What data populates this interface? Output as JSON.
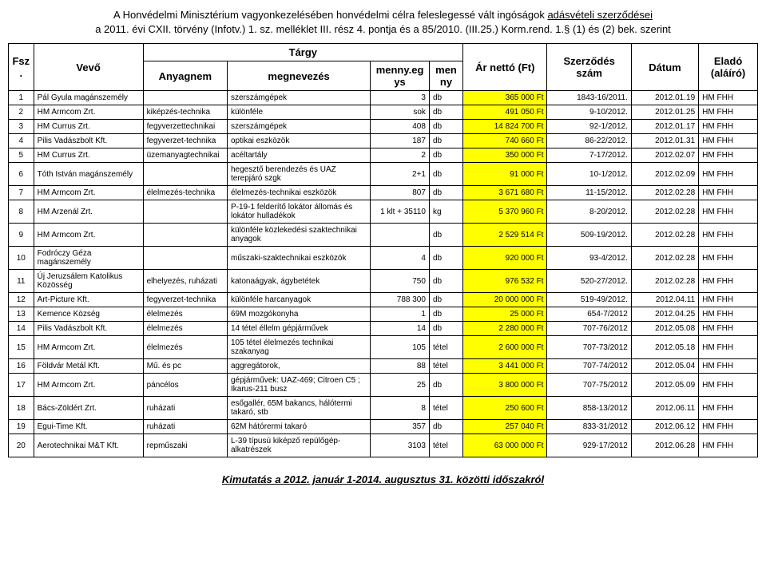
{
  "title_line1_a": "A Honvédelmi Minisztérium vagyonkezelésében honvédelmi célra feleslegessé vált ingóságok ",
  "title_line1_b": "adásvételi szerződései",
  "title_line2": "a 2011. évi CXII. törvény (Infotv.) 1. sz. melléklet III. rész 4. pontja és a 85/2010. (III.25.) Korm.rend. 1.§ (1) és (2) bek. szerint",
  "headers": {
    "fsz": "Fsz.",
    "vevo": "Vevő",
    "targy": "Tárgy",
    "anyagnem": "Anyagnem",
    "megnevezes": "megnevezés",
    "mennyegys": "menny.egys",
    "menny": "menny",
    "ar": "Ár nettó (Ft)",
    "szerzodes": "Szerződés szám",
    "datum": "Dátum",
    "elado": "Eladó (aláíró)"
  },
  "rows": [
    {
      "n": "1",
      "vevo": "Pál Gyula magánszemély",
      "anyag": "",
      "meg": "szerszámgépek",
      "me": "3",
      "menny": "db",
      "ar": "365 000 Ft",
      "szerz": "1843-16/2011.",
      "datum": "2012.01.19",
      "elado": "HM FHH"
    },
    {
      "n": "2",
      "vevo": "HM Armcom Zrt.",
      "anyag": "kiképzés-technika",
      "meg": "különféle",
      "me": "sok",
      "menny": "db",
      "ar": "491 050 Ft",
      "szerz": "9-10/2012.",
      "datum": "2012.01.25",
      "elado": "HM FHH"
    },
    {
      "n": "3",
      "vevo": "HM Currus Zrt.",
      "anyag": "fegyverzettechnikai",
      "meg": "szerszámgépek",
      "me": "408",
      "menny": "db",
      "ar": "14 824 700 Ft",
      "szerz": "92-1/2012.",
      "datum": "2012.01.17",
      "elado": "HM FHH"
    },
    {
      "n": "4",
      "vevo": "Pilis Vadászbolt Kft.",
      "anyag": "fegyverzet-technika",
      "meg": "optikai eszközök",
      "me": "187",
      "menny": "db",
      "ar": "740 660 Ft",
      "szerz": "86-22/2012.",
      "datum": "2012.01.31",
      "elado": "HM FHH"
    },
    {
      "n": "5",
      "vevo": "HM Currus Zrt.",
      "anyag": "üzemanyagtechnikai",
      "meg": "acéltartály",
      "me": "2",
      "menny": "db",
      "ar": "350 000 Ft",
      "szerz": "7-17/2012.",
      "datum": "2012.02.07",
      "elado": "HM FHH"
    },
    {
      "n": "6",
      "vevo": "Tóth István magánszemély",
      "anyag": "",
      "meg": "hegesztő berendezés és UAZ terepjáró szgk",
      "me": "2+1",
      "menny": "db",
      "ar": "91 000 Ft",
      "szerz": "10-1/2012.",
      "datum": "2012.02.09",
      "elado": "HM FHH"
    },
    {
      "n": "7",
      "vevo": "HM Armcom Zrt.",
      "anyag": "élelmezés-technika",
      "meg": "élelmezés-technikai eszközök",
      "me": "807",
      "menny": "db",
      "ar": "3 671 680 Ft",
      "szerz": "11-15/2012.",
      "datum": "2012.02.28",
      "elado": "HM FHH"
    },
    {
      "n": "8",
      "vevo": "HM Arzenál Zrt.",
      "anyag": "",
      "meg": "P-19-1 felderítő lokátor állomás és lokátor hulladékok",
      "me": "1 klt + 35110",
      "menny": "kg",
      "ar": "5 370 960 Ft",
      "szerz": "8-20/2012.",
      "datum": "2012.02.28",
      "elado": "HM FHH"
    },
    {
      "n": "9",
      "vevo": "HM Armcom Zrt.",
      "anyag": "",
      "meg": "különféle közlekedési szaktechnikai anyagok",
      "me": "",
      "menny": "db",
      "ar": "2 529 514 Ft",
      "szerz": "509-19/2012.",
      "datum": "2012.02.28",
      "elado": "HM FHH"
    },
    {
      "n": "10",
      "vevo": "Fodróczy Géza magánszemély",
      "anyag": "",
      "meg": "műszaki-szaktechnikai eszközök",
      "me": "4",
      "menny": "db",
      "ar": "920 000 Ft",
      "szerz": "93-4/2012.",
      "datum": "2012.02.28",
      "elado": "HM FHH"
    },
    {
      "n": "11",
      "vevo": "Új Jeruzsálem Katolikus Közösség",
      "anyag": "elhelyezés, ruházati",
      "meg": "katonaágyak, ágybetétek",
      "me": "750",
      "menny": "db",
      "ar": "976 532 Ft",
      "szerz": "520-27/2012.",
      "datum": "2012.02.28",
      "elado": "HM FHH"
    },
    {
      "n": "12",
      "vevo": "Art-Picture Kft.",
      "anyag": "fegyverzet-technika",
      "meg": "különféle harcanyagok",
      "me": "788 300",
      "menny": "db",
      "ar": "20 000 000 Ft",
      "szerz": "519-49/2012.",
      "datum": "2012.04.11",
      "elado": "HM FHH"
    },
    {
      "n": "13",
      "vevo": "Kemence Község",
      "anyag": "élelmezés",
      "meg": "69M mozgókonyha",
      "me": "1",
      "menny": "db",
      "ar": "25 000 Ft",
      "szerz": "654-7/2012",
      "datum": "2012.04.25",
      "elado": "HM FHH"
    },
    {
      "n": "14",
      "vevo": "Pilis Vadászbolt Kft.",
      "anyag": "élelmezés",
      "meg": "14 tétel éllelm gépjárművek",
      "me": "14",
      "menny": "db",
      "ar": "2 280 000 Ft",
      "szerz": "707-76/2012",
      "datum": "2012.05.08",
      "elado": "HM FHH"
    },
    {
      "n": "15",
      "vevo": "HM Armcom Zrt.",
      "anyag": "élelmezés",
      "meg": "105 tétel élelmezés technikai szakanyag",
      "me": "105",
      "menny": "tétel",
      "ar": "2 600 000 Ft",
      "szerz": "707-73/2012",
      "datum": "2012.05.18",
      "elado": "HM FHH"
    },
    {
      "n": "16",
      "vevo": "Földvár Metál Kft.",
      "anyag": "Mű. és pc",
      "meg": "aggregátorok,",
      "me": "88",
      "menny": "tétel",
      "ar": "3 441 000 Ft",
      "szerz": "707-74/2012",
      "datum": "2012.05.04",
      "elado": "HM FHH"
    },
    {
      "n": "17",
      "vevo": "HM Armcom Zrt.",
      "anyag": "páncélos",
      "meg": "gépjárművek: UAZ-469; Citroen C5 ; Ikarus-211 busz",
      "me": "25",
      "menny": "db",
      "ar": "3 800 000 Ft",
      "szerz": "707-75/2012",
      "datum": "2012.05.09",
      "elado": "HM FHH"
    },
    {
      "n": "18",
      "vevo": "Bács-Zöldért Zrt.",
      "anyag": "ruházati",
      "meg": "esőgallér, 65M bakancs, hálótermi takaró, stb",
      "me": "8",
      "menny": "tétel",
      "ar": "250 600 Ft",
      "szerz": "858-13/2012",
      "datum": "2012.06.11",
      "elado": "HM FHH"
    },
    {
      "n": "19",
      "vevo": "Egui-Time Kft.",
      "anyag": "ruházati",
      "meg": "62M hátórermi takaró",
      "me": "357",
      "menny": "db",
      "ar": "257 040 Ft",
      "szerz": "833-31/2012",
      "datum": "2012.06.12",
      "elado": "HM FHH"
    },
    {
      "n": "20",
      "vevo": "Aerotechnikai M&T Kft.",
      "anyag": "repműszaki",
      "meg": "L-39 típusú kiképző repülőgép-alkatrészek",
      "me": "3103",
      "menny": "tétel",
      "ar": "63 000 000 Ft",
      "szerz": "929-17/2012",
      "datum": "2012.06.28",
      "elado": "HM FHH"
    }
  ],
  "footer": "Kimutatás a 2012. január 1-2014. augusztus 31. közötti időszakról",
  "colors": {
    "highlight": "#ffff00",
    "border": "#000000",
    "bg": "#ffffff",
    "text": "#000000"
  }
}
